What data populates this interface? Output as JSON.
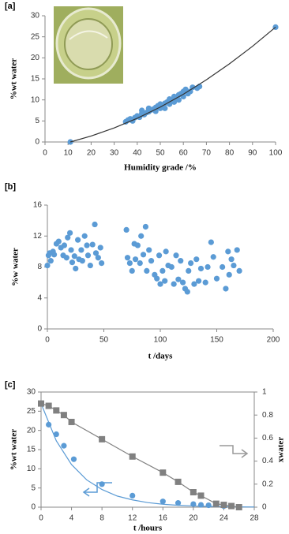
{
  "chart_data": [
    {
      "type": "scatter",
      "label": "[a]",
      "xlabel": "Humidity grade /%",
      "ylabel": "%wt water",
      "xlim": [
        0,
        100
      ],
      "xticks": [
        0,
        10,
        20,
        30,
        40,
        50,
        60,
        70,
        80,
        90,
        100
      ],
      "ylim": [
        0,
        30
      ],
      "yticks": [
        0,
        5,
        10,
        15,
        20,
        25,
        30
      ],
      "series": [
        {
          "color": "#5b9bd5",
          "marker": "circle",
          "line": false,
          "x": [
            35,
            36,
            37,
            38,
            39,
            40,
            41,
            42,
            42,
            43,
            44,
            45,
            45,
            46,
            47,
            48,
            48,
            49,
            50,
            50,
            51,
            52,
            52,
            53,
            54,
            54,
            55,
            56,
            56,
            57,
            58,
            58,
            59,
            60,
            60,
            61,
            62,
            63,
            64,
            66,
            67,
            11,
            100
          ],
          "values": [
            4.8,
            5.2,
            5.5,
            5.0,
            5.8,
            6.2,
            5.9,
            6.8,
            7.5,
            6.5,
            7.0,
            7.2,
            8.0,
            7.6,
            7.8,
            8.2,
            7.3,
            8.6,
            8.0,
            9.0,
            8.5,
            9.2,
            8.0,
            9.5,
            9.0,
            10.2,
            9.8,
            9.5,
            10.8,
            10.5,
            10.0,
            11.2,
            11.5,
            10.8,
            12.0,
            12.5,
            11.5,
            12.0,
            13.0,
            12.8,
            13.2,
            0,
            27.3
          ]
        },
        {
          "color": "#333333",
          "marker": "none",
          "line": true,
          "x": [
            11,
            20,
            30,
            40,
            50,
            60,
            70,
            80,
            90,
            100
          ],
          "values": [
            0,
            1.41,
            3.33,
            5.63,
            8.3,
            11.35,
            14.78,
            18.58,
            22.75,
            27.3
          ]
        }
      ]
    },
    {
      "type": "scatter",
      "label": "[b]",
      "xlabel": "t /days",
      "ylabel": "%w water",
      "xlim": [
        0,
        200
      ],
      "xticks": [
        0,
        50,
        100,
        150,
        200
      ],
      "ylim": [
        0,
        16
      ],
      "yticks": [
        0,
        4,
        8,
        12,
        16
      ],
      "series": [
        {
          "color": "#5b9bd5",
          "marker": "circle",
          "line": false,
          "x": [
            0,
            1,
            2,
            3,
            5,
            6,
            8,
            10,
            12,
            14,
            15,
            17,
            18,
            20,
            21,
            22,
            24,
            25,
            27,
            28,
            30,
            31,
            33,
            35,
            36,
            38,
            40,
            42,
            43,
            45,
            47,
            48,
            70,
            71,
            73,
            75,
            77,
            78,
            80,
            82,
            83,
            85,
            87,
            88,
            90,
            92,
            95,
            97,
            99,
            100,
            102,
            104,
            105,
            107,
            110,
            112,
            114,
            116,
            118,
            120,
            122,
            124,
            125,
            127,
            130,
            132,
            134,
            136,
            140,
            142,
            145,
            147,
            150,
            155,
            158,
            160,
            161,
            163,
            165,
            168,
            170
          ],
          "values": [
            8.2,
            9.5,
            9.8,
            8.8,
            10.0,
            9.6,
            11.0,
            11.3,
            10.5,
            9.5,
            10.8,
            9.2,
            11.8,
            12.4,
            10.2,
            8.6,
            9.4,
            7.8,
            11.5,
            9.0,
            10.2,
            8.8,
            12.0,
            10.8,
            9.5,
            8.2,
            10.9,
            13.5,
            9.8,
            9.2,
            10.5,
            8.5,
            12.8,
            9.2,
            8.5,
            7.5,
            11.0,
            9.0,
            10.8,
            8.5,
            12.0,
            9.6,
            13.2,
            7.5,
            10.2,
            8.8,
            7.0,
            6.5,
            9.5,
            5.8,
            7.5,
            6.2,
            10.0,
            8.2,
            8.0,
            5.8,
            9.5,
            6.4,
            8.8,
            6.0,
            5.2,
            4.8,
            7.5,
            8.5,
            5.8,
            9.0,
            6.2,
            7.8,
            6.0,
            8.0,
            11.2,
            9.3,
            6.5,
            8.0,
            5.2,
            10.0,
            7.0,
            9.0,
            8.2,
            10.2,
            7.5
          ]
        }
      ]
    },
    {
      "type": "scatter",
      "label": "[c]",
      "xlabel": "t /hours",
      "ylabel": "%wt water",
      "y2label": "xwater",
      "xlim": [
        0,
        28
      ],
      "xticks": [
        0,
        4,
        8,
        12,
        16,
        20,
        24,
        28
      ],
      "ylim": [
        0,
        30
      ],
      "yticks": [
        0,
        5,
        10,
        15,
        20,
        25,
        30
      ],
      "y2lim": [
        0,
        1
      ],
      "y2ticks": [
        0,
        0.2,
        0.4,
        0.6,
        0.8,
        1
      ],
      "series": [
        {
          "color": "#5b9bd5",
          "marker": "none",
          "line": true,
          "x": [
            0,
            2,
            4,
            6,
            8,
            10,
            12,
            14,
            16,
            18,
            20,
            22,
            24,
            26,
            28
          ],
          "values": [
            27,
            17.3,
            11.1,
            7.1,
            4.6,
            2.9,
            1.9,
            1.2,
            0.77,
            0.49,
            0.32,
            0.2,
            0.13,
            0.08,
            0.05
          ]
        },
        {
          "color": "#5b9bd5",
          "marker": "circle",
          "line": false,
          "x": [
            0,
            1,
            2,
            3,
            4.3,
            8,
            12,
            16,
            18,
            20,
            21,
            22,
            24
          ],
          "values": [
            27,
            21.5,
            19,
            16,
            12.5,
            6,
            3,
            1.5,
            1.1,
            0.8,
            0.6,
            0.5,
            0.3
          ]
        },
        {
          "color": "#808080",
          "marker": "square",
          "line": true,
          "axis": "y2",
          "x": [
            0,
            1,
            2,
            3,
            4,
            8,
            12,
            16,
            18,
            20,
            21,
            23,
            24,
            25,
            26
          ],
          "values": [
            0.9,
            0.88,
            0.84,
            0.8,
            0.74,
            0.59,
            0.44,
            0.3,
            0.22,
            0.13,
            0.1,
            0.03,
            0.02,
            0.01,
            0
          ]
        }
      ]
    }
  ]
}
